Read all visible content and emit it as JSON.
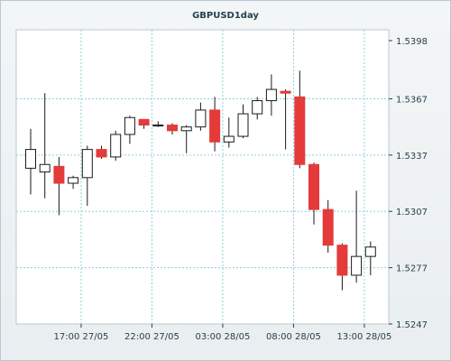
{
  "chart_data": {
    "type": "candlestick",
    "title": "GBPUSD1day",
    "xlabel": "",
    "ylabel": "",
    "ylim": [
      1.5247,
      1.5398
    ],
    "y_ticks": [
      "1.5398",
      "1.5367",
      "1.5337",
      "1.5307",
      "1.5277",
      "1.5247"
    ],
    "x_ticks": [
      "17:00 27/05",
      "22:00 27/05",
      "03:00 28/05",
      "08:00 28/05",
      "13:00 28/05"
    ],
    "grid": true,
    "colors": {
      "up": "#ffffff",
      "down": "#e43a3a",
      "outline": "#1a1a1a",
      "grid": "#8fd0d8"
    },
    "candles": [
      {
        "o": 1.533,
        "h": 1.5351,
        "l": 1.5316,
        "c": 1.534
      },
      {
        "o": 1.5328,
        "h": 1.537,
        "l": 1.5314,
        "c": 1.5332
      },
      {
        "o": 1.5331,
        "h": 1.5336,
        "l": 1.5305,
        "c": 1.5322
      },
      {
        "o": 1.5322,
        "h": 1.5326,
        "l": 1.5319,
        "c": 1.5325
      },
      {
        "o": 1.5325,
        "h": 1.5342,
        "l": 1.531,
        "c": 1.534
      },
      {
        "o": 1.534,
        "h": 1.5342,
        "l": 1.5335,
        "c": 1.5336
      },
      {
        "o": 1.5336,
        "h": 1.535,
        "l": 1.5334,
        "c": 1.5348
      },
      {
        "o": 1.5348,
        "h": 1.5358,
        "l": 1.5343,
        "c": 1.5357
      },
      {
        "o": 1.5356,
        "h": 1.5356,
        "l": 1.5351,
        "c": 1.5353
      },
      {
        "o": 1.5353,
        "h": 1.5355,
        "l": 1.5352,
        "c": 1.5353
      },
      {
        "o": 1.5353,
        "h": 1.5354,
        "l": 1.5348,
        "c": 1.535
      },
      {
        "o": 1.535,
        "h": 1.5353,
        "l": 1.5338,
        "c": 1.5352
      },
      {
        "o": 1.5352,
        "h": 1.5365,
        "l": 1.535,
        "c": 1.5361
      },
      {
        "o": 1.5361,
        "h": 1.5368,
        "l": 1.5339,
        "c": 1.5344
      },
      {
        "o": 1.5344,
        "h": 1.5357,
        "l": 1.5341,
        "c": 1.5347
      },
      {
        "o": 1.5347,
        "h": 1.5364,
        "l": 1.5346,
        "c": 1.5359
      },
      {
        "o": 1.5359,
        "h": 1.5368,
        "l": 1.5356,
        "c": 1.5366
      },
      {
        "o": 1.5366,
        "h": 1.538,
        "l": 1.5358,
        "c": 1.5372
      },
      {
        "o": 1.5371,
        "h": 1.5372,
        "l": 1.534,
        "c": 1.537
      },
      {
        "o": 1.5368,
        "h": 1.5382,
        "l": 1.533,
        "c": 1.5332
      },
      {
        "o": 1.5332,
        "h": 1.5333,
        "l": 1.53,
        "c": 1.5308
      },
      {
        "o": 1.5308,
        "h": 1.5313,
        "l": 1.5285,
        "c": 1.5289
      },
      {
        "o": 1.5289,
        "h": 1.529,
        "l": 1.5265,
        "c": 1.5273
      },
      {
        "o": 1.5273,
        "h": 1.5318,
        "l": 1.5269,
        "c": 1.5283
      },
      {
        "o": 1.5283,
        "h": 1.5291,
        "l": 1.5273,
        "c": 1.5288
      }
    ]
  }
}
